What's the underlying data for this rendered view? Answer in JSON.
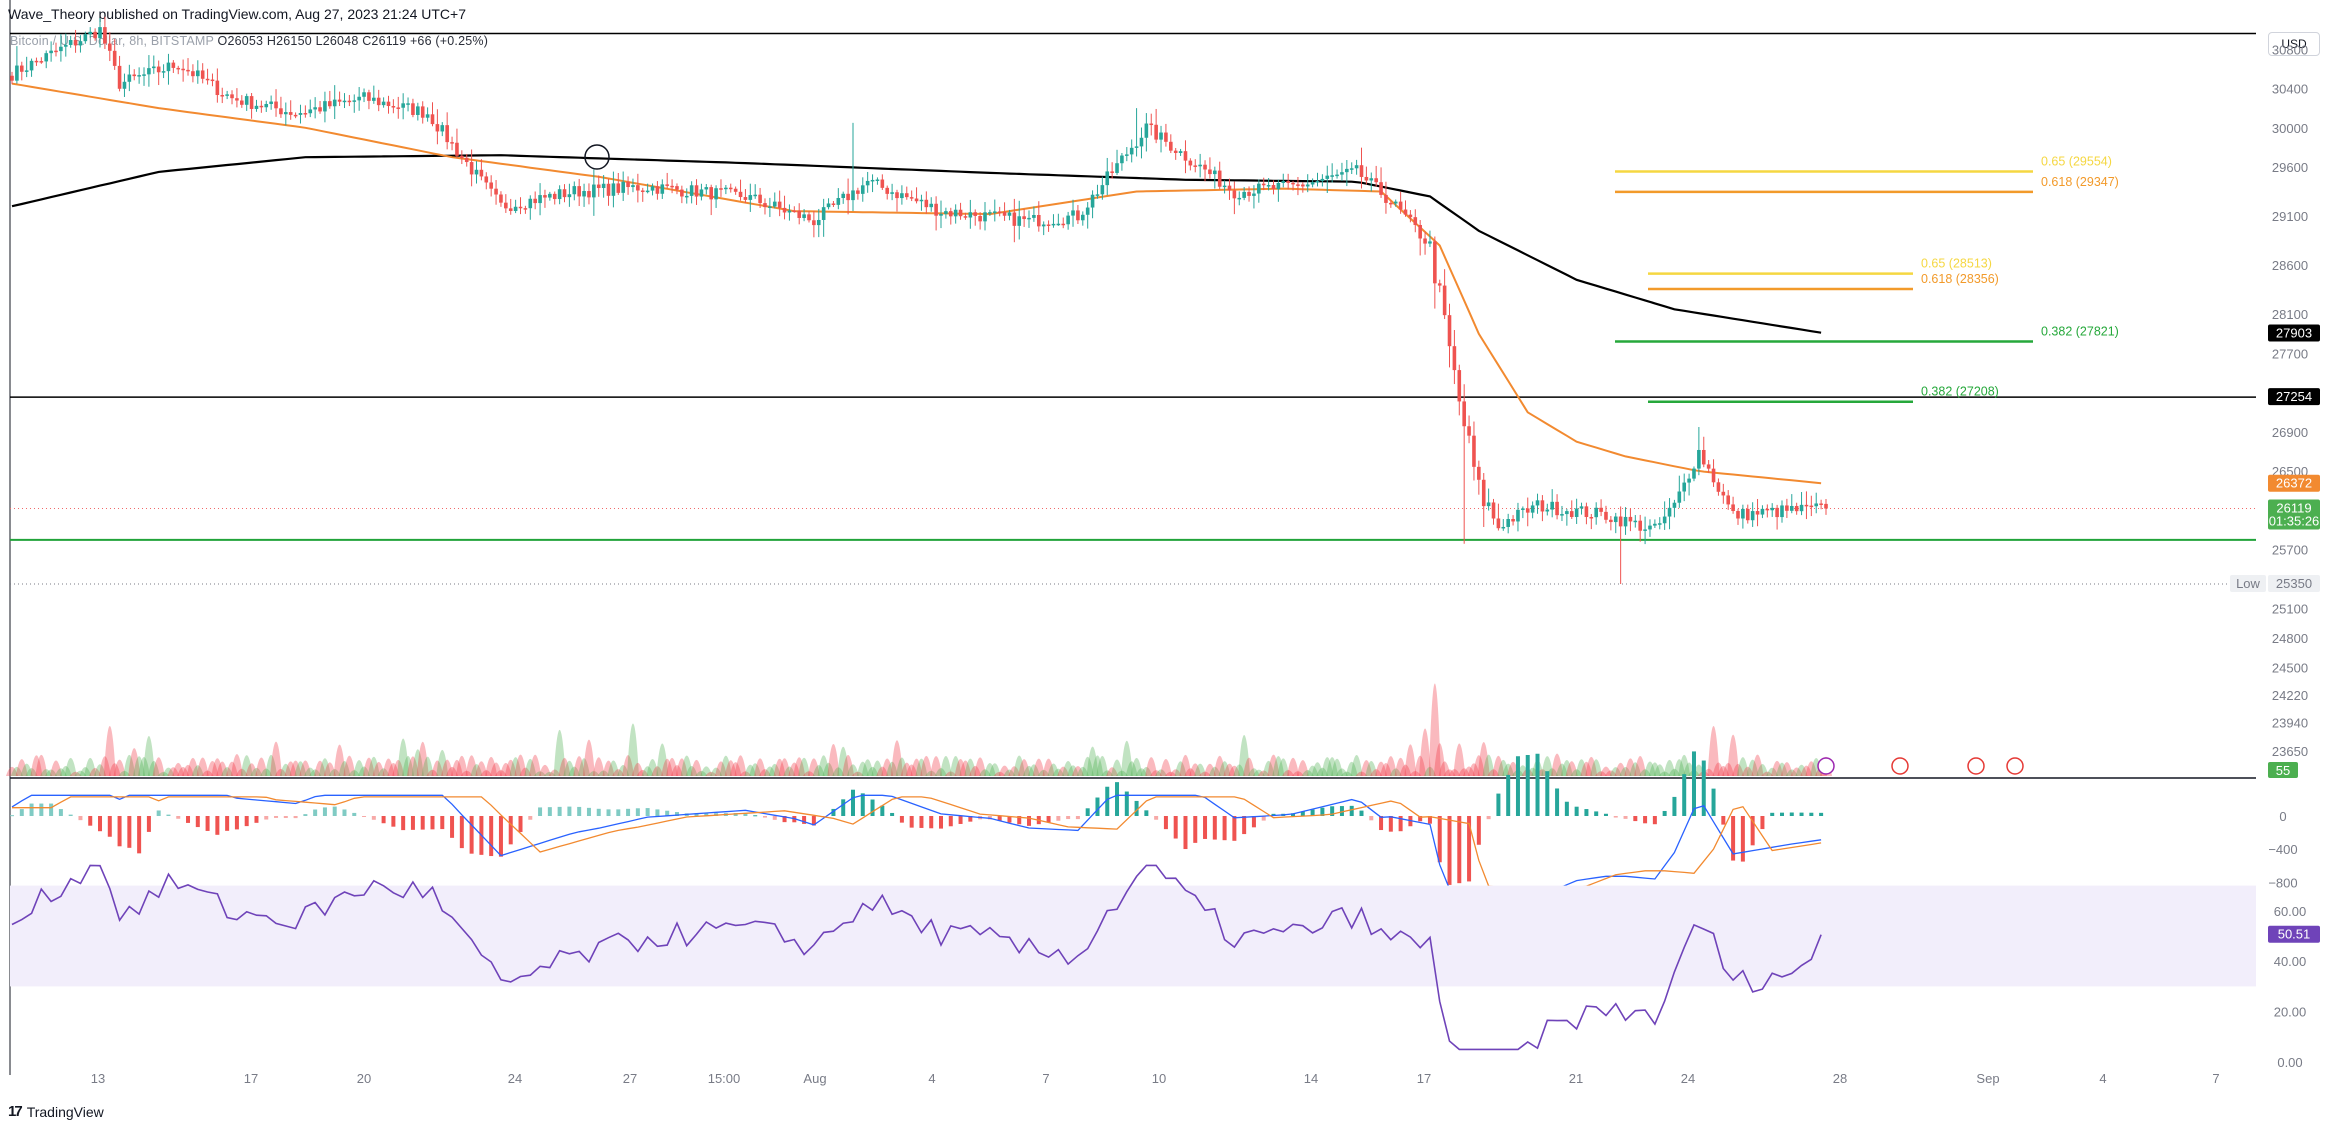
{
  "header": {
    "publisher": "Wave_Theory published on TradingView.com, Aug 27, 2023 21:24 UTC+7",
    "ohlc_prefix": "Bitcoin / U.S. Dollar, 8h, BITSTAMP",
    "open": "O26053",
    "high": "H26150",
    "low": "L26048",
    "close": "C26119",
    "change": "+66 (+0.25%)"
  },
  "currency": "USD",
  "footer": {
    "brand": "TradingView",
    "logo": "17"
  },
  "chart_data": {
    "type": "candlestick",
    "price_axis_ticks": [
      30800,
      30400,
      30000,
      29600,
      29100,
      28600,
      28100,
      27700,
      26900,
      26500,
      25700,
      25100,
      24800,
      24500,
      24220,
      23940,
      23650
    ],
    "time_axis_ticks": [
      "13",
      "17",
      "20",
      "24",
      "27",
      "15:00",
      "Aug",
      "4",
      "7",
      "10",
      "14",
      "17",
      "21",
      "24",
      "28",
      "Sep",
      "4",
      "7"
    ],
    "horizontal_levels": [
      {
        "name": "resistance",
        "value": 30960,
        "color": "#000000"
      },
      {
        "name": "resistance-2",
        "value": 27254,
        "color": "#000000"
      },
      {
        "name": "support",
        "value": 25800,
        "color": "#21a33a"
      }
    ],
    "fibonacci": [
      {
        "label": "0.65 (29554)",
        "value": 29554,
        "color": "#f5d742"
      },
      {
        "label": "0.618 (29347)",
        "value": 29347,
        "color": "#f29a2a"
      },
      {
        "label": "0.65 (28513)",
        "value": 28513,
        "color": "#f5d742"
      },
      {
        "label": "0.618 (28356)",
        "value": 28356,
        "color": "#f29a2a"
      },
      {
        "label": "0.382 (27821)",
        "value": 27821,
        "color": "#26a83b"
      },
      {
        "label": "0.382 (27208)",
        "value": 27208,
        "color": "#26a83b"
      }
    ],
    "price_badges": [
      {
        "label": "27903",
        "value": 27903,
        "bg": "#000000"
      },
      {
        "label": "27254",
        "value": 27254,
        "bg": "#000000"
      },
      {
        "label": "26372",
        "value": 26372,
        "bg": "#f28a30"
      },
      {
        "label": "26119",
        "sub": "01:35:26",
        "value": 26119,
        "bg": "#4caf50"
      }
    ],
    "low_marker": {
      "tag": "Low",
      "label": "25350",
      "value": 25350
    },
    "volume_badge": "55",
    "macd_ticks": [
      {
        "label": "0",
        "value": 0
      },
      {
        "label": "−400",
        "value": -400
      },
      {
        "label": "−800",
        "value": -800
      }
    ],
    "rsi_ticks": [
      {
        "label": "60.00",
        "value": 60
      },
      {
        "label": "40.00",
        "value": 40
      },
      {
        "label": "20.00",
        "value": 20
      },
      {
        "label": "0.00",
        "value": 0
      }
    ],
    "rsi_value": "50.51",
    "rsi_band": [
      30,
      70
    ],
    "series": {
      "close_anchors": [
        [
          0,
          30550
        ],
        [
          12,
          30850
        ],
        [
          18,
          31000
        ],
        [
          22,
          30450
        ],
        [
          34,
          30650
        ],
        [
          45,
          30300
        ],
        [
          58,
          30150
        ],
        [
          72,
          30300
        ],
        [
          85,
          30150
        ],
        [
          92,
          29700
        ],
        [
          100,
          29200
        ],
        [
          115,
          29350
        ],
        [
          130,
          29400
        ],
        [
          150,
          29300
        ],
        [
          164,
          29050
        ],
        [
          175,
          29450
        ],
        [
          190,
          29150
        ],
        [
          208,
          29050
        ],
        [
          218,
          29100
        ],
        [
          232,
          30000
        ],
        [
          250,
          29350
        ],
        [
          262,
          29400
        ],
        [
          275,
          29550
        ],
        [
          282,
          29250
        ],
        [
          290,
          28800
        ],
        [
          296,
          27200
        ],
        [
          300,
          26300
        ],
        [
          304,
          25950
        ],
        [
          312,
          26150
        ],
        [
          326,
          26050
        ],
        [
          336,
          25900
        ],
        [
          340,
          26150
        ],
        [
          345,
          26700
        ],
        [
          352,
          26050
        ],
        [
          364,
          26100
        ],
        [
          371,
          26119
        ]
      ],
      "ema_anchors": [
        [
          0,
          30450
        ],
        [
          30,
          30200
        ],
        [
          60,
          30000
        ],
        [
          90,
          29700
        ],
        [
          120,
          29500
        ],
        [
          160,
          29150
        ],
        [
          200,
          29120
        ],
        [
          230,
          29350
        ],
        [
          260,
          29380
        ],
        [
          280,
          29350
        ],
        [
          292,
          28800
        ],
        [
          300,
          27900
        ],
        [
          310,
          27100
        ],
        [
          320,
          26800
        ],
        [
          330,
          26650
        ],
        [
          345,
          26500
        ],
        [
          371,
          26372
        ]
      ],
      "sma_anchors": [
        [
          0,
          29200
        ],
        [
          30,
          29550
        ],
        [
          60,
          29700
        ],
        [
          100,
          29720
        ],
        [
          150,
          29640
        ],
        [
          200,
          29540
        ],
        [
          240,
          29470
        ],
        [
          275,
          29450
        ],
        [
          290,
          29300
        ],
        [
          300,
          28950
        ],
        [
          320,
          28450
        ],
        [
          340,
          28150
        ],
        [
          371,
          27903
        ]
      ]
    }
  }
}
